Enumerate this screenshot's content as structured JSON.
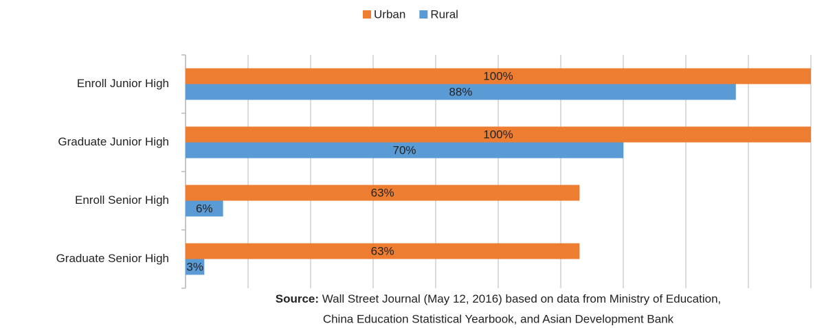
{
  "chart_data": {
    "type": "barh",
    "categories": [
      "Enroll Junior High",
      "Graduate Junior High",
      "Enroll Senior High",
      "Graduate Senior High"
    ],
    "series": [
      {
        "name": "Urban",
        "color": "#ED7D31",
        "values": [
          100,
          100,
          63,
          63
        ],
        "value_labels": [
          "100%",
          "100%",
          "63%",
          "63%"
        ]
      },
      {
        "name": "Rural",
        "color": "#5B9BD5",
        "values": [
          88,
          70,
          6,
          3
        ],
        "value_labels": [
          "88%",
          "70%",
          "6%",
          "3%"
        ]
      }
    ],
    "xlim": [
      0,
      100
    ],
    "xticks": [
      0,
      10,
      20,
      30,
      40,
      50,
      60,
      70,
      80,
      90,
      100
    ],
    "grid": true,
    "legend": "top",
    "source_label": "Source:",
    "source": [
      "Wall Street Journal (May 12, 2016) based on data from Ministry of Education,",
      "China Education Statistical Yearbook, and Asian Development Bank"
    ]
  }
}
